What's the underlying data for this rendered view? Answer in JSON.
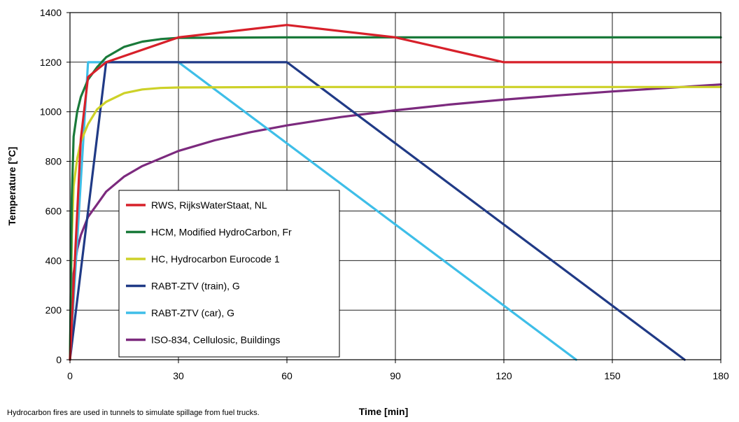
{
  "chart_data": {
    "type": "line",
    "xlabel": "Time [min]",
    "ylabel": "Temperature [°C]",
    "xlim": [
      0,
      180
    ],
    "ylim": [
      0,
      1400
    ],
    "xticks": [
      0,
      30,
      60,
      90,
      120,
      150,
      180
    ],
    "yticks": [
      0,
      200,
      400,
      600,
      800,
      1000,
      1200,
      1400
    ],
    "grid": true,
    "legend_position": "lower-left, inside plot",
    "series": [
      {
        "name": "RWS, RijksWaterStaat, NL",
        "color": "#d7202a",
        "x": [
          0,
          3,
          5,
          10,
          30,
          60,
          90,
          120,
          180
        ],
        "y": [
          0,
          890,
          1140,
          1200,
          1300,
          1350,
          1300,
          1200,
          1200
        ]
      },
      {
        "name": "HCM, Modified HydroCarbon, Fr",
        "color": "#1a7a3a",
        "x": [
          0,
          0.5,
          1,
          2,
          3,
          5,
          7.5,
          10,
          15,
          20,
          25,
          30,
          60,
          90,
          120,
          180
        ],
        "y": [
          0,
          650,
          900,
          1000,
          1060,
          1130,
          1180,
          1220,
          1262,
          1283,
          1293,
          1298,
          1300,
          1300,
          1300,
          1300
        ]
      },
      {
        "name": "HC, Hydrocarbon Eurocode 1",
        "color": "#cdd128",
        "x": [
          0,
          0.5,
          1,
          2,
          3,
          5,
          7.5,
          10,
          15,
          20,
          25,
          30,
          60,
          90,
          120,
          180
        ],
        "y": [
          0,
          500,
          700,
          810,
          880,
          950,
          1010,
          1040,
          1075,
          1090,
          1096,
          1098,
          1100,
          1100,
          1100,
          1100
        ]
      },
      {
        "name": "RABT-ZTV (train), G",
        "color": "#203a86",
        "x": [
          0,
          10,
          60,
          170
        ],
        "y": [
          0,
          1200,
          1200,
          0
        ]
      },
      {
        "name": "RABT-ZTV (car), G",
        "color": "#3ebee8",
        "x": [
          0,
          5,
          30,
          140
        ],
        "y": [
          0,
          1200,
          1200,
          0
        ]
      },
      {
        "name": "ISO-834, Cellulosic, Buildings",
        "color": "#7c2a7e",
        "x": [
          0,
          0.5,
          1,
          2,
          3,
          5,
          7.5,
          10,
          15,
          20,
          30,
          40,
          50,
          60,
          75,
          90,
          105,
          120,
          135,
          150,
          165,
          180
        ],
        "y": [
          0,
          261,
          349,
          445,
          502,
          576,
          627,
          678,
          739,
          781,
          842,
          885,
          918,
          945,
          979,
          1006,
          1029,
          1049,
          1066,
          1082,
          1096,
          1110
        ]
      }
    ]
  },
  "footnote": "Hydrocarbon fires are used in tunnels to simulate spillage from fuel trucks."
}
